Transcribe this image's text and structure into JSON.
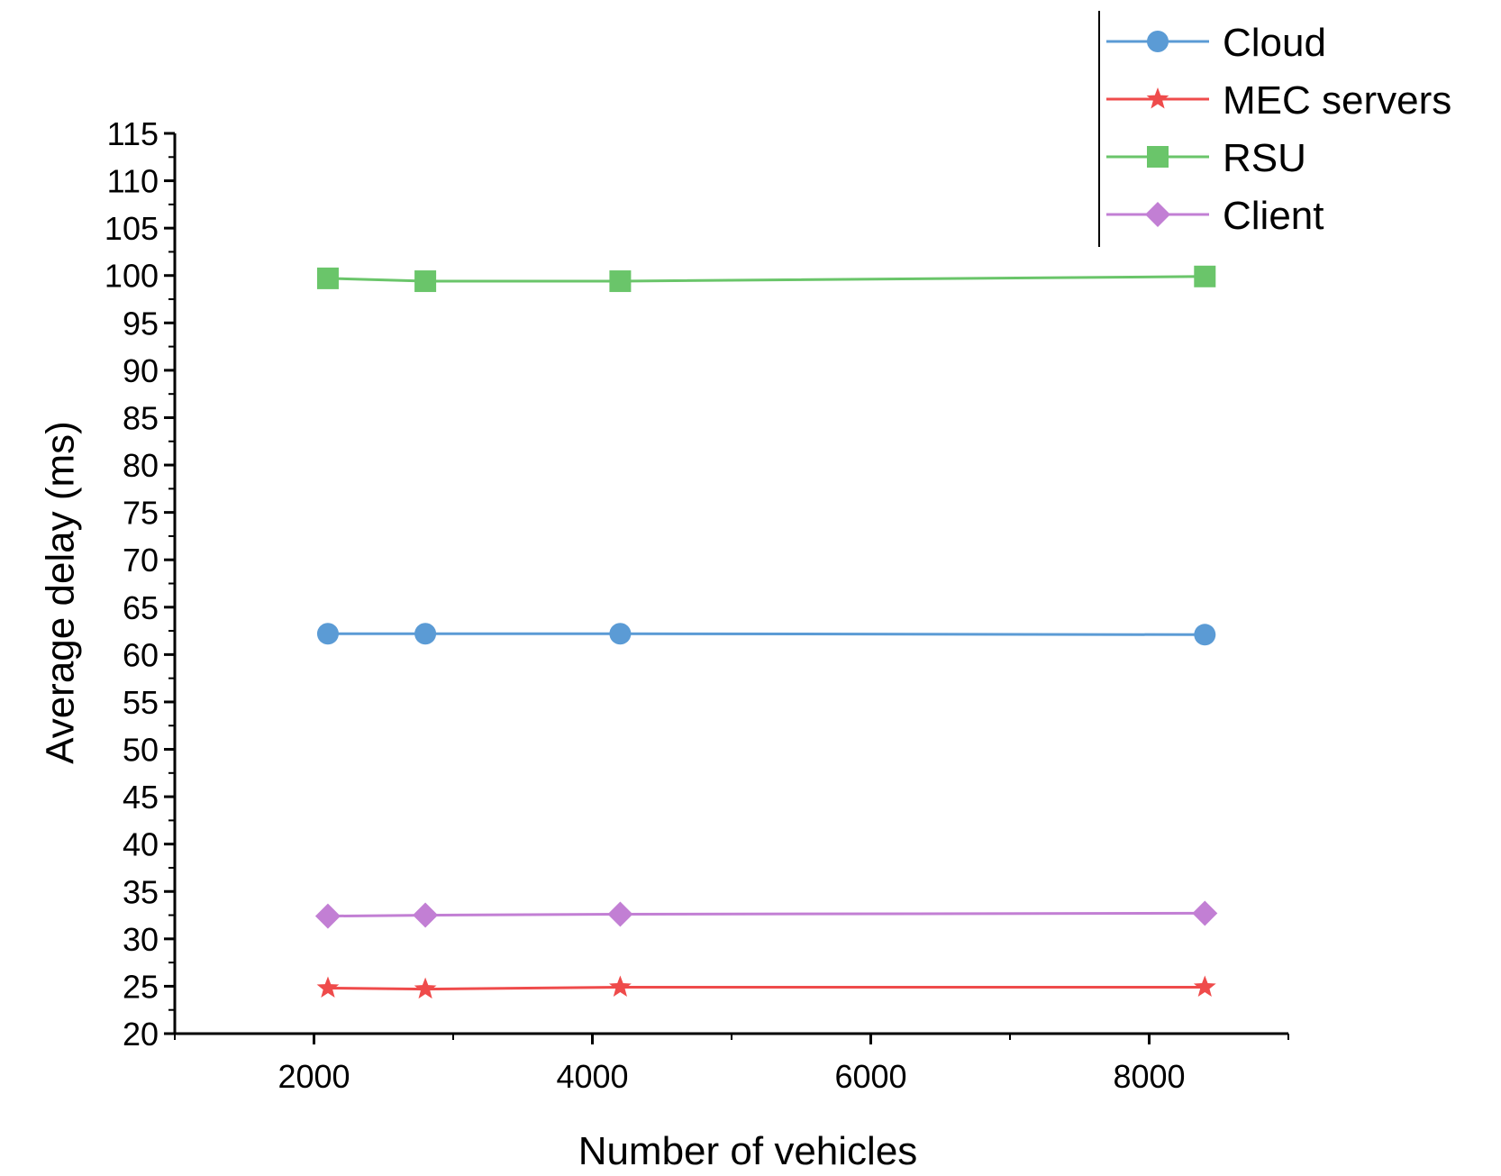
{
  "chart_data": {
    "type": "line",
    "title": "",
    "xlabel": "Number of vehicles",
    "ylabel": "Average delay (ms)",
    "xlim": [
      1000,
      9000
    ],
    "ylim": [
      20,
      115
    ],
    "x_ticks": [
      2000,
      4000,
      6000,
      8000
    ],
    "y_ticks": [
      20,
      25,
      30,
      35,
      40,
      45,
      50,
      55,
      60,
      65,
      70,
      75,
      80,
      85,
      90,
      95,
      100,
      105,
      110,
      115
    ],
    "x": [
      2100,
      2800,
      4200,
      8400
    ],
    "grid": false,
    "legend_position": "top-right",
    "series": [
      {
        "name": "Cloud",
        "values": [
          62.2,
          62.2,
          62.2,
          62.1
        ],
        "color": "#5b9bd5",
        "marker": "circle"
      },
      {
        "name": "MEC servers",
        "values": [
          24.8,
          24.7,
          24.9,
          24.9
        ],
        "color": "#ef4b4b",
        "marker": "star"
      },
      {
        "name": "RSU",
        "values": [
          99.7,
          99.4,
          99.4,
          99.9
        ],
        "color": "#6ac56a",
        "marker": "square"
      },
      {
        "name": "Client",
        "values": [
          32.4,
          32.5,
          32.6,
          32.7
        ],
        "color": "#c27fd4",
        "marker": "diamond"
      }
    ]
  }
}
